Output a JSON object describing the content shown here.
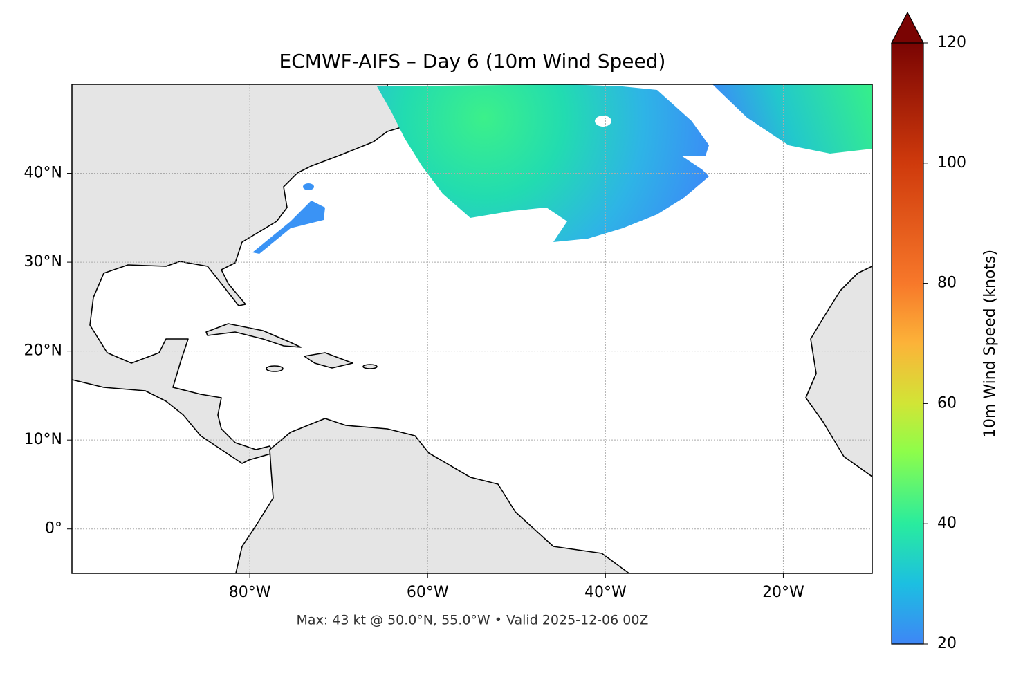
{
  "title": "ECMWF-AIFS – Day 6 (10m Wind Speed)",
  "footer": "Max: 43 kt @ 50.0°N, 55.0°W • Valid 2025-12-06 00Z",
  "map": {
    "xlim": [
      -100,
      -10
    ],
    "ylim": [
      -5,
      50
    ],
    "xticks": [
      {
        "value": -80,
        "label": "80°W"
      },
      {
        "value": -60,
        "label": "60°W"
      },
      {
        "value": -40,
        "label": "40°W"
      },
      {
        "value": -20,
        "label": "20°W"
      }
    ],
    "yticks": [
      {
        "value": 0,
        "label": "0°"
      },
      {
        "value": 10,
        "label": "10°N"
      },
      {
        "value": 20,
        "label": "20°N"
      },
      {
        "value": 30,
        "label": "30°N"
      },
      {
        "value": 40,
        "label": "40°N"
      }
    ],
    "grid": true
  },
  "colorbar": {
    "label": "10m Wind Speed (knots)",
    "lim": [
      20,
      120
    ],
    "ticks": [
      20,
      40,
      60,
      80,
      100,
      120
    ]
  }
}
